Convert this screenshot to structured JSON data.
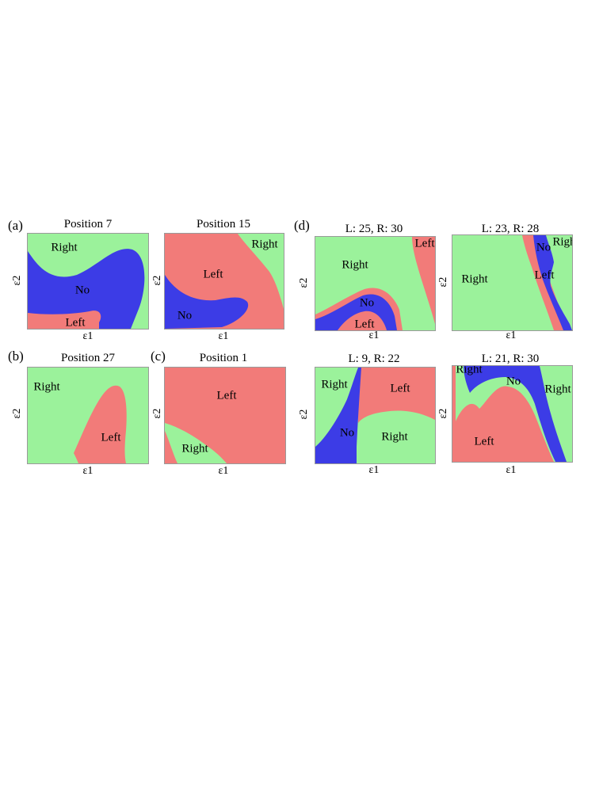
{
  "colors": {
    "green": "#9bf29b",
    "red": "#f27b79",
    "blue": "#3c3ce6"
  },
  "labels": {
    "a": "(a)",
    "b": "(b)",
    "c": "(c)",
    "d": "(d)"
  },
  "axes": {
    "x": "ε1",
    "y": "ε2"
  },
  "plots": [
    {
      "title": "Position 7",
      "regions": [
        "Right",
        "No",
        "Left"
      ]
    },
    {
      "title": "Position 15",
      "regions": [
        "Right",
        "Left",
        "No"
      ]
    },
    {
      "title": "L: 25, R: 30",
      "regions": [
        "Left",
        "Right",
        "No",
        "Left"
      ]
    },
    {
      "title": "L: 23, R: 28",
      "regions": [
        "Right",
        "No",
        "Right",
        "Left"
      ]
    },
    {
      "title": "Position 27",
      "regions": [
        "Right",
        "Left"
      ]
    },
    {
      "title": "Position 1",
      "regions": [
        "Left",
        "Right"
      ]
    },
    {
      "title": "L: 9, R: 22",
      "regions": [
        "Right",
        "Left",
        "No",
        "Right"
      ]
    },
    {
      "title": "L: 21, R: 30",
      "regions": [
        "Right",
        "No",
        "Right",
        "Left"
      ]
    }
  ]
}
